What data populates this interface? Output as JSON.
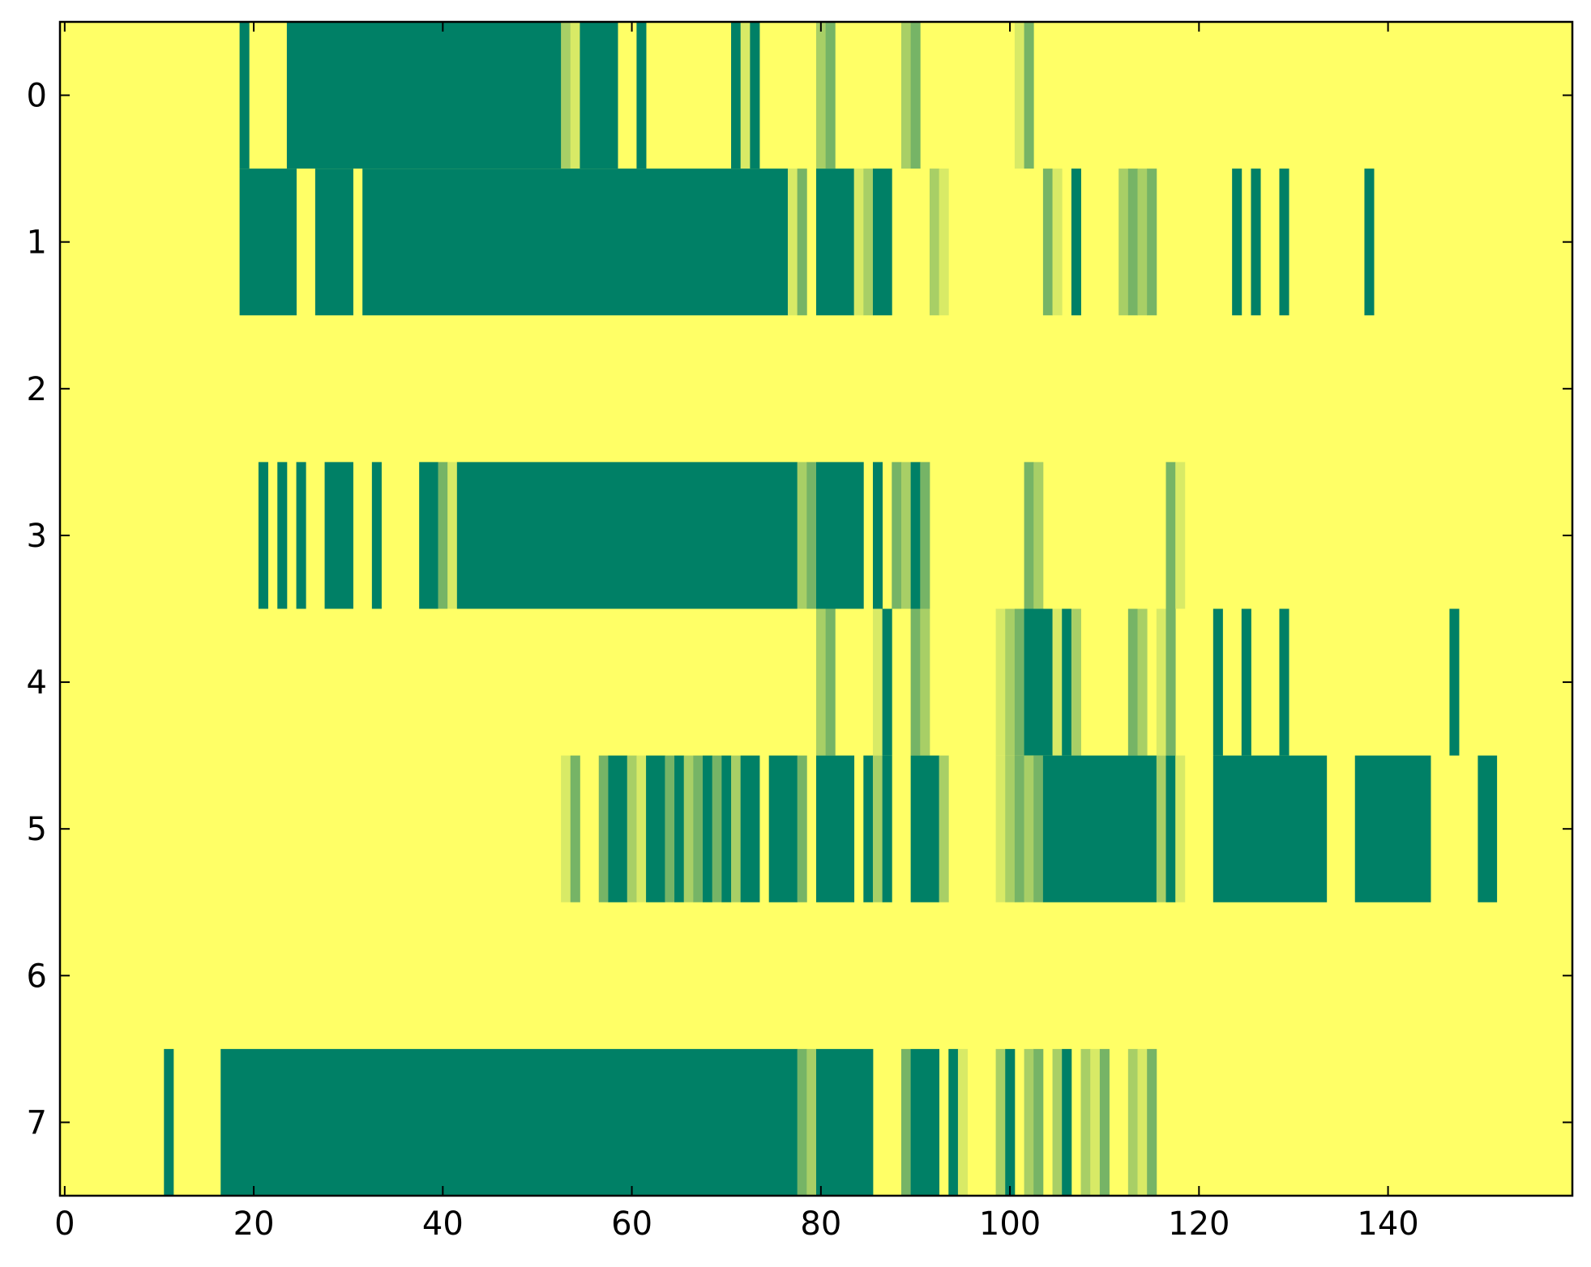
{
  "chart_data": {
    "type": "heatmap",
    "title": "",
    "xlabel": "",
    "ylabel": "",
    "xlim": [
      -0.5,
      159.5
    ],
    "ylim": [
      7.5,
      -0.5
    ],
    "x_ticks": [
      "0",
      "20",
      "40",
      "60",
      "80",
      "100",
      "120",
      "140"
    ],
    "x_tick_values": [
      0,
      20,
      40,
      60,
      80,
      100,
      120,
      140
    ],
    "y_ticks": [
      "0",
      "1",
      "2",
      "3",
      "4",
      "5",
      "6",
      "7"
    ],
    "y_tick_values": [
      0,
      1,
      2,
      3,
      4,
      5,
      6,
      7
    ],
    "grid": false,
    "colormap": "summer_r",
    "colors": {
      "low": "#ffff66",
      "level_1": "#d8ea66",
      "level_2": "#a8cf66",
      "level_3": "#76b466",
      "high": "#008066"
    },
    "value_range": [
      0,
      4
    ],
    "rows": [
      {
        "row": 0,
        "cells": [
          [
            19,
            19,
            4
          ],
          [
            24,
            52,
            4
          ],
          [
            53,
            53,
            2
          ],
          [
            54,
            54,
            1
          ],
          [
            55,
            58,
            4
          ],
          [
            61,
            61,
            4
          ],
          [
            71,
            71,
            4
          ],
          [
            72,
            72,
            1
          ],
          [
            73,
            73,
            4
          ],
          [
            80,
            80,
            2
          ],
          [
            81,
            81,
            3
          ],
          [
            89,
            89,
            2
          ],
          [
            90,
            90,
            3
          ],
          [
            101,
            101,
            1
          ],
          [
            102,
            102,
            3
          ]
        ]
      },
      {
        "row": 1,
        "cells": [
          [
            19,
            24,
            4
          ],
          [
            27,
            30,
            4
          ],
          [
            32,
            76,
            4
          ],
          [
            77,
            77,
            1
          ],
          [
            78,
            78,
            3
          ],
          [
            80,
            83,
            4
          ],
          [
            84,
            84,
            1
          ],
          [
            85,
            85,
            2
          ],
          [
            86,
            87,
            4
          ],
          [
            92,
            92,
            2
          ],
          [
            93,
            93,
            1
          ],
          [
            104,
            104,
            3
          ],
          [
            105,
            105,
            1
          ],
          [
            107,
            107,
            4
          ],
          [
            112,
            112,
            2
          ],
          [
            113,
            113,
            3
          ],
          [
            114,
            114,
            2
          ],
          [
            115,
            115,
            3
          ],
          [
            124,
            124,
            4
          ],
          [
            126,
            126,
            4
          ],
          [
            129,
            129,
            4
          ],
          [
            138,
            138,
            4
          ]
        ]
      },
      {
        "row": 2,
        "cells": []
      },
      {
        "row": 3,
        "cells": [
          [
            21,
            21,
            4
          ],
          [
            23,
            23,
            4
          ],
          [
            25,
            25,
            4
          ],
          [
            28,
            30,
            4
          ],
          [
            33,
            33,
            4
          ],
          [
            38,
            39,
            4
          ],
          [
            40,
            40,
            3
          ],
          [
            41,
            41,
            1
          ],
          [
            42,
            77,
            4
          ],
          [
            78,
            78,
            2
          ],
          [
            79,
            79,
            3
          ],
          [
            80,
            84,
            4
          ],
          [
            86,
            86,
            4
          ],
          [
            88,
            88,
            3
          ],
          [
            89,
            89,
            2
          ],
          [
            90,
            90,
            4
          ],
          [
            91,
            91,
            3
          ],
          [
            102,
            102,
            3
          ],
          [
            103,
            103,
            2
          ],
          [
            117,
            117,
            3
          ],
          [
            118,
            118,
            1
          ]
        ]
      },
      {
        "row": 4,
        "cells": [
          [
            80,
            80,
            2
          ],
          [
            81,
            81,
            3
          ],
          [
            86,
            86,
            1
          ],
          [
            87,
            87,
            4
          ],
          [
            90,
            90,
            3
          ],
          [
            91,
            91,
            2
          ],
          [
            99,
            99,
            1
          ],
          [
            100,
            100,
            2
          ],
          [
            101,
            101,
            3
          ],
          [
            102,
            104,
            4
          ],
          [
            105,
            105,
            1
          ],
          [
            106,
            106,
            4
          ],
          [
            107,
            107,
            2
          ],
          [
            113,
            113,
            3
          ],
          [
            114,
            114,
            2
          ],
          [
            116,
            116,
            1
          ],
          [
            117,
            117,
            3
          ],
          [
            122,
            122,
            4
          ],
          [
            125,
            125,
            4
          ],
          [
            129,
            129,
            4
          ],
          [
            147,
            147,
            4
          ]
        ]
      },
      {
        "row": 5,
        "cells": [
          [
            53,
            53,
            1
          ],
          [
            54,
            54,
            3
          ],
          [
            57,
            57,
            3
          ],
          [
            58,
            59,
            4
          ],
          [
            60,
            60,
            2
          ],
          [
            61,
            61,
            1
          ],
          [
            62,
            63,
            4
          ],
          [
            64,
            64,
            3
          ],
          [
            65,
            65,
            4
          ],
          [
            66,
            66,
            2
          ],
          [
            67,
            67,
            3
          ],
          [
            68,
            68,
            4
          ],
          [
            69,
            69,
            3
          ],
          [
            70,
            70,
            4
          ],
          [
            71,
            71,
            2
          ],
          [
            72,
            73,
            4
          ],
          [
            75,
            77,
            4
          ],
          [
            78,
            78,
            3
          ],
          [
            80,
            83,
            4
          ],
          [
            85,
            85,
            4
          ],
          [
            86,
            86,
            2
          ],
          [
            87,
            87,
            4
          ],
          [
            90,
            92,
            4
          ],
          [
            93,
            93,
            2
          ],
          [
            99,
            99,
            1
          ],
          [
            100,
            100,
            2
          ],
          [
            101,
            101,
            3
          ],
          [
            102,
            102,
            2
          ],
          [
            103,
            103,
            3
          ],
          [
            104,
            115,
            4
          ],
          [
            116,
            116,
            2
          ],
          [
            117,
            117,
            4
          ],
          [
            118,
            118,
            1
          ],
          [
            122,
            133,
            4
          ],
          [
            137,
            144,
            4
          ],
          [
            150,
            151,
            4
          ]
        ]
      },
      {
        "row": 6,
        "cells": []
      },
      {
        "row": 7,
        "cells": [
          [
            11,
            11,
            4
          ],
          [
            17,
            77,
            4
          ],
          [
            78,
            78,
            3
          ],
          [
            79,
            79,
            2
          ],
          [
            80,
            85,
            4
          ],
          [
            89,
            89,
            3
          ],
          [
            90,
            92,
            4
          ],
          [
            94,
            94,
            4
          ],
          [
            95,
            95,
            1
          ],
          [
            99,
            99,
            2
          ],
          [
            100,
            100,
            4
          ],
          [
            102,
            102,
            2
          ],
          [
            103,
            103,
            3
          ],
          [
            105,
            105,
            2
          ],
          [
            106,
            106,
            4
          ],
          [
            108,
            108,
            2
          ],
          [
            109,
            109,
            1
          ],
          [
            110,
            110,
            3
          ],
          [
            113,
            113,
            2
          ],
          [
            114,
            114,
            1
          ],
          [
            115,
            115,
            3
          ]
        ]
      }
    ]
  }
}
